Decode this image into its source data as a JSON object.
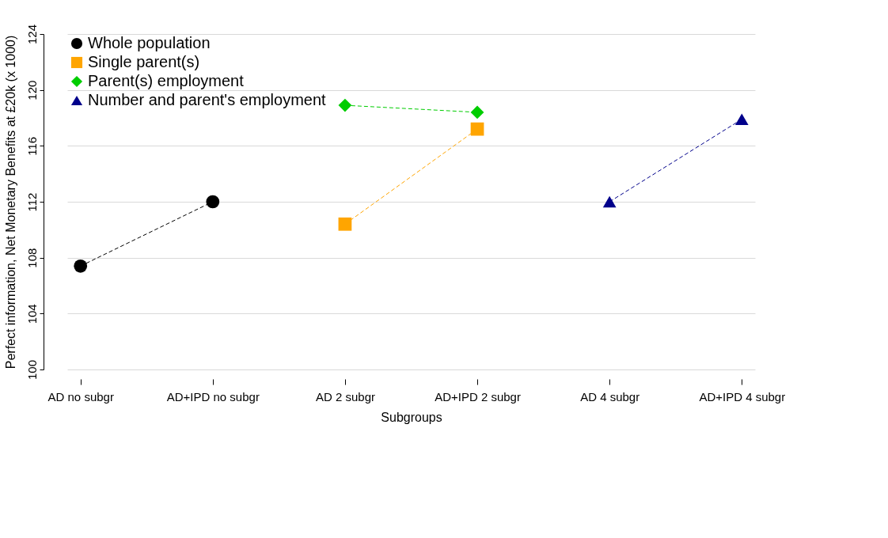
{
  "chart_data": {
    "type": "line",
    "xlabel": "Subgroups",
    "ylabel": "Perfect information, Net Monetary Benefits at £20k (x 1000)",
    "categories": [
      "AD no subgr",
      "AD+IPD no subgr",
      "AD 2 subgr",
      "AD+IPD 2 subgr",
      "AD 4 subgr",
      "AD+IPD 4 subgr"
    ],
    "ylim": [
      100,
      124
    ],
    "yticks": [
      100,
      104,
      108,
      112,
      116,
      120,
      124
    ],
    "grid": "y",
    "legend": "top left",
    "line_style": "dashed",
    "series": [
      {
        "name": "Whole population",
        "color": "#000000",
        "marker": "circle",
        "values": [
          107.4,
          112.0,
          null,
          null,
          null,
          null
        ]
      },
      {
        "name": "Single parent(s)",
        "color": "#ffa500",
        "marker": "square",
        "values": [
          null,
          null,
          110.4,
          117.2,
          null,
          null
        ]
      },
      {
        "name": "Parent(s) employment",
        "color": "#00cd00",
        "marker": "diamond",
        "values": [
          null,
          null,
          118.9,
          118.4,
          null,
          null
        ]
      },
      {
        "name": "Number and parent's employment",
        "color": "#00008b",
        "marker": "triangle",
        "values": [
          null,
          null,
          null,
          null,
          112.0,
          117.9
        ]
      }
    ]
  }
}
